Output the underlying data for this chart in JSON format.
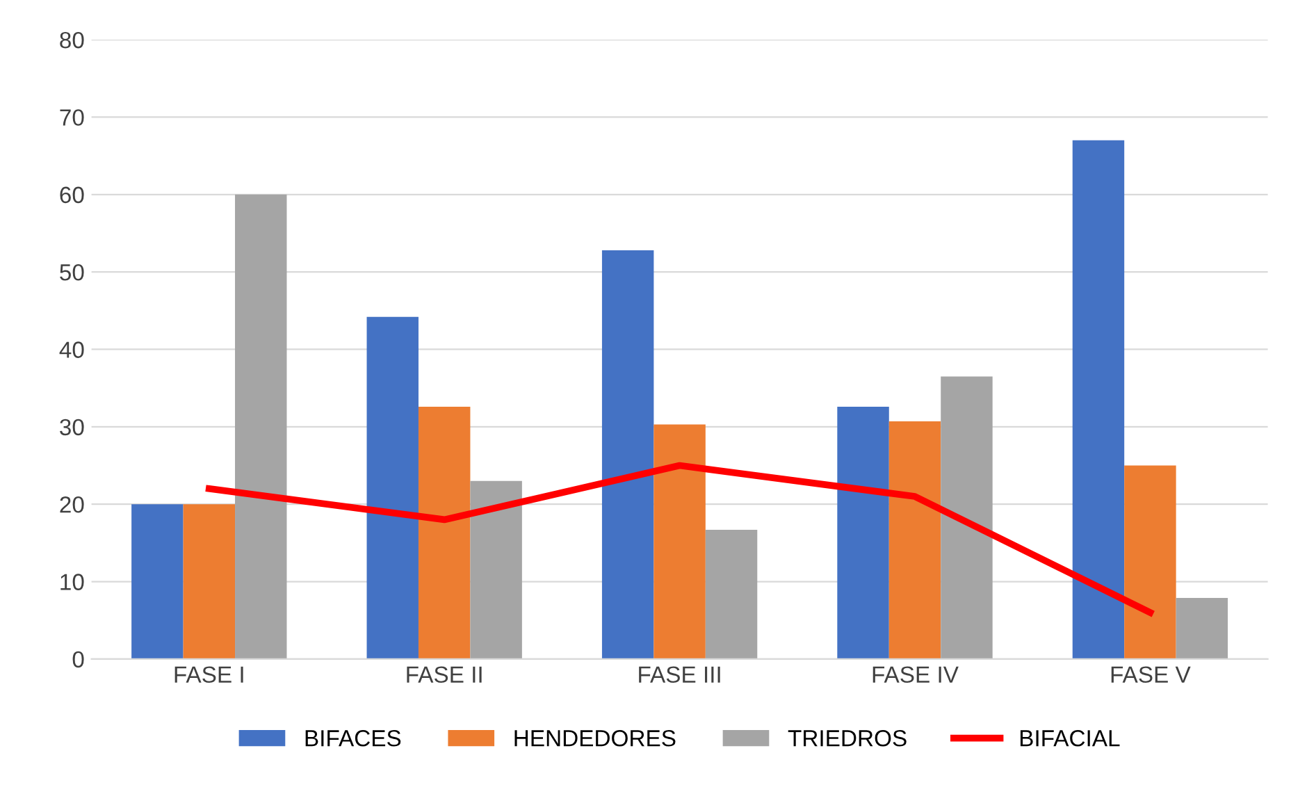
{
  "chart_data": {
    "type": "bar",
    "categories": [
      "FASE I",
      "FASE II",
      "FASE III",
      "FASE IV",
      "FASE V"
    ],
    "series": [
      {
        "name": "BIFACES",
        "color": "#4472c4",
        "values": [
          20,
          44.2,
          52.8,
          32.6,
          67
        ]
      },
      {
        "name": "HENDEDORES",
        "color": "#ed7d31",
        "values": [
          20,
          32.6,
          30.3,
          30.7,
          25
        ]
      },
      {
        "name": "TRIEDROS",
        "color": "#a5a5a5",
        "values": [
          60,
          23,
          16.7,
          36.5,
          7.9
        ]
      },
      {
        "name": "BIFACIAL",
        "color": "#ff0000",
        "type": "line",
        "values": [
          22,
          18,
          25,
          21,
          6
        ]
      }
    ],
    "ylim": [
      0,
      80
    ],
    "yticks": [
      0,
      10,
      20,
      30,
      40,
      50,
      60,
      70,
      80
    ],
    "grid": "y",
    "legend": "bottom",
    "marker": "none"
  }
}
